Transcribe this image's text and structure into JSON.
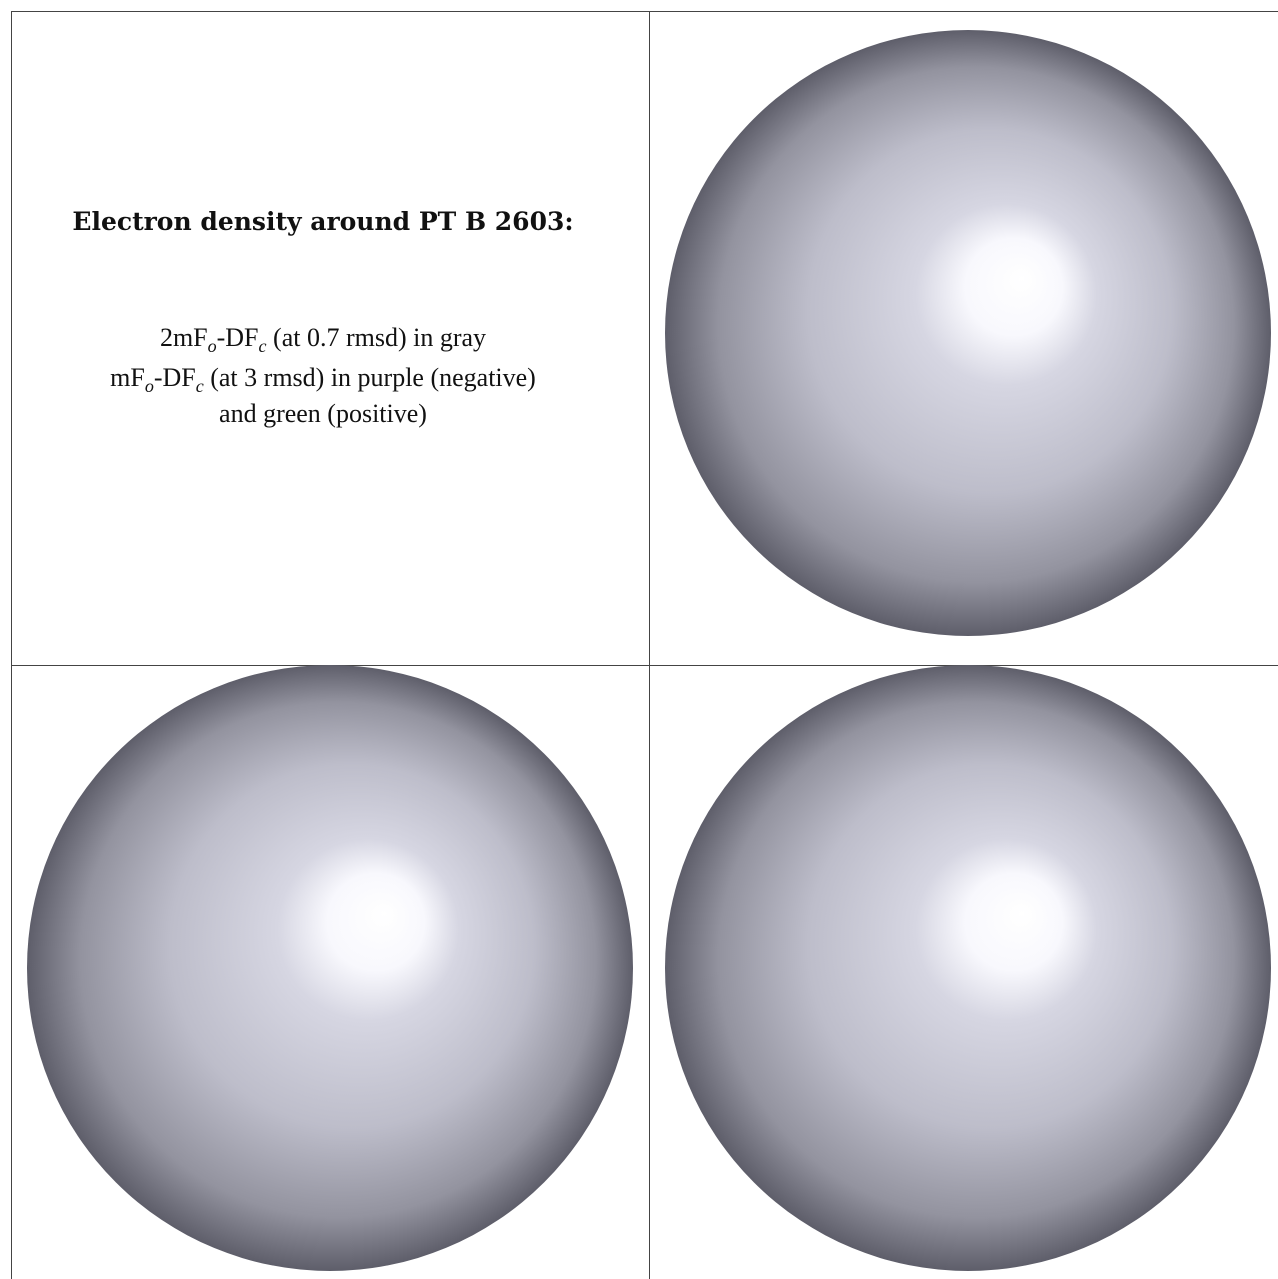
{
  "title": "Electron density around PT B 2603:",
  "lines": [
    [
      "2mF",
      "o",
      "-DF",
      "c",
      " (at 0.7 rmsd) in gray"
    ],
    [
      "mF",
      "o",
      "-DF",
      "c",
      " (at 3 rmsd) in purple (negative)"
    ],
    [
      "and green (positive)"
    ]
  ]
}
